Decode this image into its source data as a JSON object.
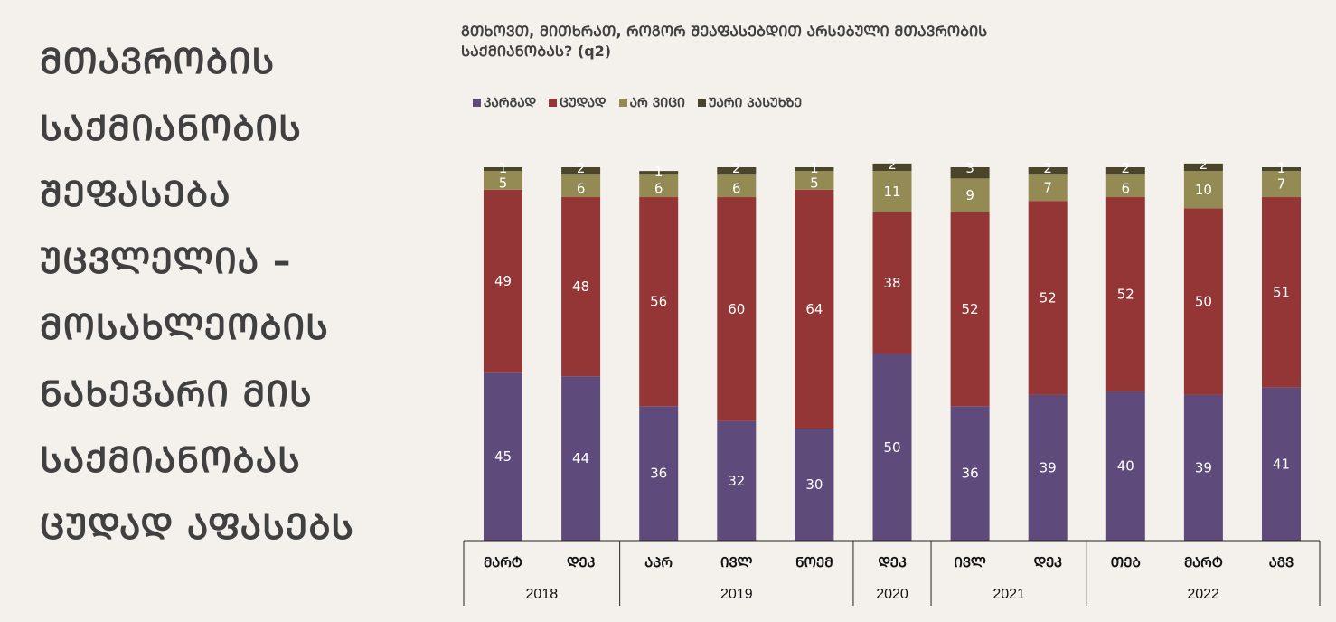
{
  "headline": "ᲛᲗᲐᲕᲠᲝᲑᲘᲡ ᲡᲐᲥᲛᲘᲐᲜᲝᲑᲘᲡ ᲨᲔᲤᲐᲡᲔᲑᲐ ᲣᲪᲕᲚᲔᲚᲘᲐ – ᲛᲝᲡᲐᲮᲚᲔᲝᲑᲘᲡ ᲜᲐᲮᲔᲕᲐᲠᲘ ᲛᲘᲡ ᲡᲐᲥᲛᲘᲐᲜᲝᲑᲐᲡ ᲪᲣᲓᲐᲓ ᲐᲤᲐᲡᲔᲑᲡ",
  "colors": {
    "background": "#f4f1ec",
    "text": "#404040"
  },
  "chart_data": {
    "type": "bar",
    "stacked": true,
    "title": "ᲒᲗᲮᲝᲕᲗ, ᲛᲘᲗᲮᲠᲐᲗ, ᲠᲝᲒᲝᲠ ᲨᲔᲐᲤᲐᲡᲔᲑᲓᲘᲗ ᲐᲠᲡᲔᲑᲣᲚᲘ ᲛᲗᲐᲕᲠᲝᲑᲘᲡ ᲡᲐᲥᲛᲘᲐᲜᲝᲑᲐᲡ? (q2)",
    "xlabel": "",
    "ylabel": "",
    "ylim": [
      0,
      100
    ],
    "grid": false,
    "legend_position": "top-left",
    "categories": [
      {
        "month": "ᲛᲐᲠᲢ",
        "year": "2018"
      },
      {
        "month": "ᲓᲔᲙ",
        "year": "2018"
      },
      {
        "month": "ᲐᲞᲠ",
        "year": "2019"
      },
      {
        "month": "ᲘᲕᲚ",
        "year": "2019"
      },
      {
        "month": "ᲜᲝᲔᲛ",
        "year": "2019"
      },
      {
        "month": "ᲓᲔᲙ",
        "year": "2020"
      },
      {
        "month": "ᲘᲕᲚ",
        "year": "2021"
      },
      {
        "month": "ᲓᲔᲙ",
        "year": "2021"
      },
      {
        "month": "ᲗᲔᲑ",
        "year": "2022"
      },
      {
        "month": "ᲛᲐᲠᲢ",
        "year": "2022"
      },
      {
        "month": "ᲐᲒᲕ",
        "year": "2022"
      }
    ],
    "year_groups": [
      {
        "year": "2018",
        "count": 2
      },
      {
        "year": "2019",
        "count": 3
      },
      {
        "year": "2020",
        "count": 1
      },
      {
        "year": "2021",
        "count": 2
      },
      {
        "year": "2022",
        "count": 3
      }
    ],
    "series": [
      {
        "name": "ᲙᲐᲠᲒᲐᲓ",
        "color": "#5f4b7b",
        "values": [
          45,
          44,
          36,
          32,
          30,
          50,
          36,
          39,
          40,
          39,
          41
        ]
      },
      {
        "name": "ᲪᲣᲓᲐᲓ",
        "color": "#953636",
        "values": [
          49,
          48,
          56,
          60,
          64,
          38,
          52,
          52,
          52,
          50,
          51
        ]
      },
      {
        "name": "ᲐᲠ ᲕᲘᲪᲘ",
        "color": "#948a54",
        "values": [
          5,
          6,
          6,
          6,
          5,
          11,
          9,
          7,
          6,
          10,
          7
        ]
      },
      {
        "name": "ᲣᲐᲠᲘ ᲞᲐᲡᲣᲮᲖᲔ",
        "color": "#4a452a",
        "values": [
          1,
          2,
          1,
          2,
          1,
          2,
          3,
          2,
          2,
          2,
          1
        ]
      }
    ]
  }
}
